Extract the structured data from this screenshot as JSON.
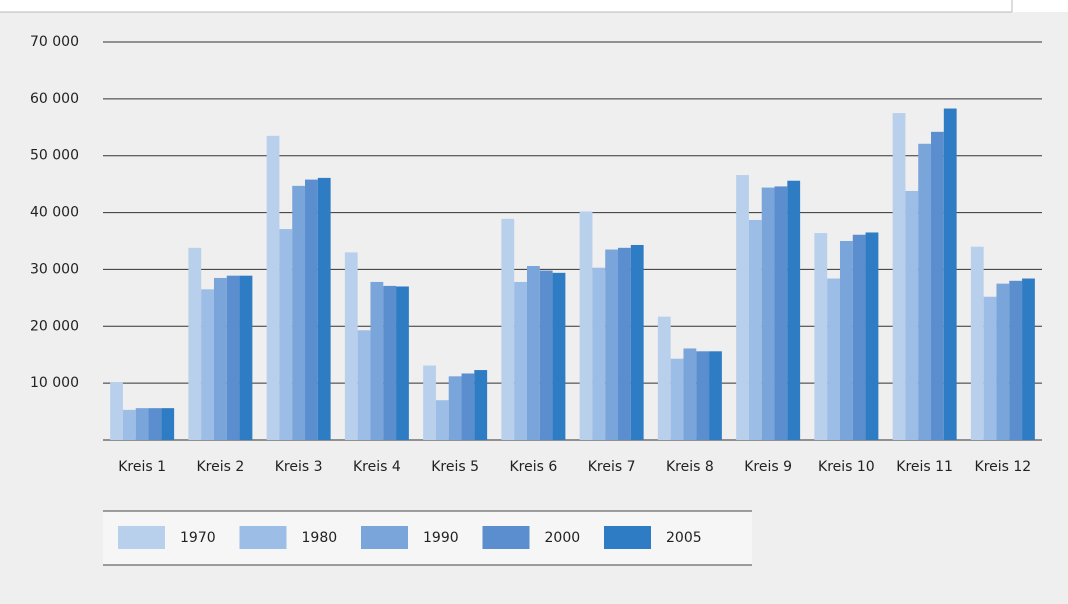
{
  "chart_data": {
    "type": "bar",
    "categories": [
      "Kreis 1",
      "Kreis 2",
      "Kreis 3",
      "Kreis 4",
      "Kreis 5",
      "Kreis 6",
      "Kreis 7",
      "Kreis 8",
      "Kreis 9",
      "Kreis 10",
      "Kreis 11",
      "Kreis 12"
    ],
    "series": [
      {
        "name": "1970",
        "color": "#b9d0ec",
        "values": [
          10200,
          33800,
          53500,
          33000,
          13100,
          38900,
          40200,
          21700,
          46600,
          36400,
          57500,
          34000
        ]
      },
      {
        "name": "1980",
        "color": "#9bbde6",
        "values": [
          5300,
          26500,
          37100,
          19300,
          7000,
          27800,
          30300,
          14300,
          38700,
          28400,
          43800,
          25200
        ]
      },
      {
        "name": "1990",
        "color": "#7aa5da",
        "values": [
          5600,
          28500,
          44700,
          27800,
          11200,
          30600,
          33500,
          16100,
          44400,
          35000,
          52100,
          27500
        ]
      },
      {
        "name": "2000",
        "color": "#5a8ecf",
        "values": [
          5600,
          28900,
          45800,
          27100,
          11700,
          29800,
          33800,
          15600,
          44600,
          36100,
          54200,
          28000
        ]
      },
      {
        "name": "2005",
        "color": "#2e7cc4",
        "values": [
          5600,
          28900,
          46100,
          27000,
          12300,
          29400,
          34300,
          15600,
          45600,
          36500,
          58300,
          28400
        ]
      }
    ],
    "ylim": [
      0,
      70000
    ],
    "yticks": [
      {
        "value": 10000,
        "label": "10 000"
      },
      {
        "value": 20000,
        "label": "20 000"
      },
      {
        "value": 30000,
        "label": "30 000"
      },
      {
        "value": 40000,
        "label": "40 000"
      },
      {
        "value": 50000,
        "label": "50 000"
      },
      {
        "value": 60000,
        "label": "60 000"
      },
      {
        "value": 70000,
        "label": "70 000"
      }
    ],
    "grid": true
  }
}
